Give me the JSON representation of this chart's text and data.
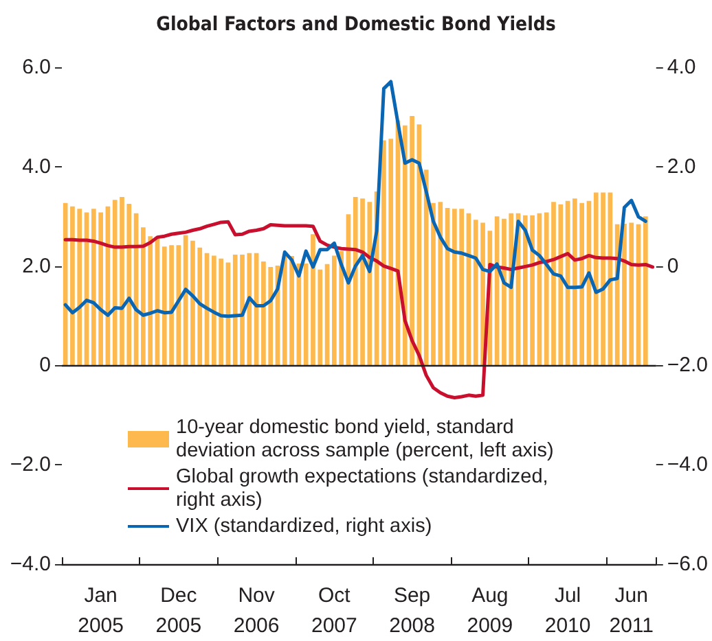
{
  "chart_data": {
    "type": "bar",
    "title": "Global Factors and Domestic Bond Yields",
    "categories": [
      null,
      null,
      null,
      null,
      null,
      "Jan\n2005",
      null,
      null,
      null,
      null,
      null,
      null,
      null,
      null,
      null,
      null,
      "Dec\n2005",
      null,
      null,
      null,
      null,
      null,
      null,
      null,
      null,
      null,
      null,
      "Nov\n2006",
      null,
      null,
      null,
      null,
      null,
      null,
      null,
      null,
      null,
      null,
      "Oct\n2007",
      null,
      null,
      null,
      null,
      null,
      null,
      null,
      null,
      null,
      null,
      "Sep\n2008",
      null,
      null,
      null,
      null,
      null,
      null,
      null,
      null,
      null,
      null,
      "Aug\n2009",
      null,
      null,
      null,
      null,
      null,
      null,
      null,
      null,
      null,
      null,
      "Jul\n2010",
      null,
      null,
      null,
      null,
      null,
      null,
      null,
      null,
      "Jun\n2011",
      null,
      null,
      null
    ],
    "series": [
      {
        "name": "10-year domestic bond yield, standard deviation across sample (percent, left axis)",
        "color": "#fdb94e",
        "values": [
          3.27,
          3.2,
          3.15,
          3.08,
          3.15,
          3.08,
          3.2,
          3.33,
          3.39,
          3.25,
          3.06,
          2.78,
          2.6,
          2.58,
          2.39,
          2.42,
          2.42,
          2.62,
          2.51,
          2.37,
          2.26,
          2.21,
          2.15,
          2.07,
          2.23,
          2.23,
          2.26,
          2.26,
          2.09,
          1.98,
          2.01,
          2.2,
          2.2,
          2.05,
          2.05,
          2.64,
          1.93,
          2.04,
          2.21,
          2.3,
          3.04,
          3.39,
          3.36,
          3.29,
          3.5,
          4.53,
          4.56,
          4.93,
          4.83,
          5.02,
          4.85,
          3.94,
          3.27,
          3.29,
          3.17,
          3.15,
          3.15,
          3.06,
          2.93,
          2.87,
          2.71,
          3.0,
          2.95,
          3.06,
          3.06,
          3.02,
          3.02,
          3.06,
          3.08,
          3.29,
          3.24,
          3.31,
          3.36,
          3.27,
          3.31,
          3.48,
          3.48,
          3.48,
          2.84,
          2.85,
          2.87,
          2.84,
          3.0,
          null
        ]
      },
      {
        "name": "Global growth expectations (standardized, right axis)",
        "type": "line",
        "axis": "y2",
        "color": "#c8102e",
        "values": [
          0.53,
          0.53,
          0.52,
          0.52,
          0.5,
          0.46,
          0.41,
          0.38,
          0.38,
          0.39,
          0.39,
          0.4,
          0.47,
          0.58,
          0.6,
          0.64,
          0.66,
          0.68,
          0.72,
          0.75,
          0.8,
          0.84,
          0.88,
          0.89,
          0.63,
          0.64,
          0.7,
          0.72,
          0.75,
          0.83,
          0.82,
          0.81,
          0.81,
          0.81,
          0.81,
          0.8,
          0.5,
          0.42,
          0.38,
          0.35,
          0.34,
          0.33,
          0.28,
          0.17,
          0.1,
          0.0,
          -0.05,
          -0.1,
          -1.1,
          -1.5,
          -1.8,
          -2.2,
          -2.45,
          -2.55,
          -2.62,
          -2.65,
          -2.63,
          -2.6,
          -2.62,
          -2.6,
          0.03,
          -0.02,
          -0.04,
          -0.07,
          -0.04,
          -0.01,
          0.02,
          0.07,
          0.09,
          0.13,
          0.19,
          0.25,
          0.12,
          0.15,
          0.21,
          0.17,
          0.16,
          0.16,
          0.15,
          0.1,
          0.03,
          0.02,
          0.03,
          -0.02
        ]
      },
      {
        "name": "VIX (standardized, right axis)",
        "type": "line",
        "axis": "y2",
        "color": "#0a66b3",
        "values": [
          -0.78,
          -0.94,
          -0.83,
          -0.69,
          -0.74,
          -0.88,
          -0.99,
          -0.84,
          -0.85,
          -0.65,
          -0.88,
          -0.99,
          -0.95,
          -0.9,
          -0.94,
          -0.93,
          -0.7,
          -0.47,
          -0.6,
          -0.76,
          -0.85,
          -0.93,
          -1.0,
          -1.01,
          -1.0,
          -0.99,
          -0.64,
          -0.8,
          -0.8,
          -0.7,
          -0.46,
          0.28,
          0.12,
          -0.2,
          0.3,
          -0.02,
          0.33,
          0.33,
          0.46,
          0.03,
          -0.34,
          0.0,
          0.21,
          -0.11,
          0.7,
          3.57,
          3.71,
          2.88,
          2.07,
          2.14,
          2.07,
          1.5,
          0.9,
          0.58,
          0.35,
          0.28,
          0.26,
          0.21,
          0.16,
          -0.07,
          -0.11,
          0.04,
          -0.34,
          -0.43,
          0.9,
          0.72,
          0.32,
          0.21,
          0.03,
          -0.16,
          -0.2,
          -0.43,
          -0.43,
          -0.42,
          -0.14,
          -0.53,
          -0.46,
          -0.28,
          -0.25,
          1.18,
          1.32,
          0.99,
          0.9,
          null
        ]
      }
    ],
    "ylim": [
      -4,
      6
    ],
    "yticks": [
      {
        "value": -4,
        "label": "−4.0"
      },
      {
        "value": -2,
        "label": "−2.0"
      },
      {
        "value": 0,
        "label": "0"
      },
      {
        "value": 2,
        "label": "2.0"
      },
      {
        "value": 4,
        "label": "4.0"
      },
      {
        "value": 6,
        "label": "6.0"
      }
    ],
    "y2lim": [
      -6,
      4
    ],
    "y2ticks": [
      {
        "value": -6,
        "label": "−6.0"
      },
      {
        "value": -4,
        "label": "−4.0"
      },
      {
        "value": -2,
        "label": "−2.0"
      },
      {
        "value": 0,
        "label": "0"
      },
      {
        "value": 2,
        "label": "2.0"
      },
      {
        "value": 4,
        "label": "4.0"
      }
    ],
    "ref_lines": [
      {
        "axis": "y",
        "value": 0,
        "color": "#231f20"
      }
    ],
    "grid": false,
    "legend": "bottom",
    "marker": "none",
    "line_style": "solid"
  }
}
